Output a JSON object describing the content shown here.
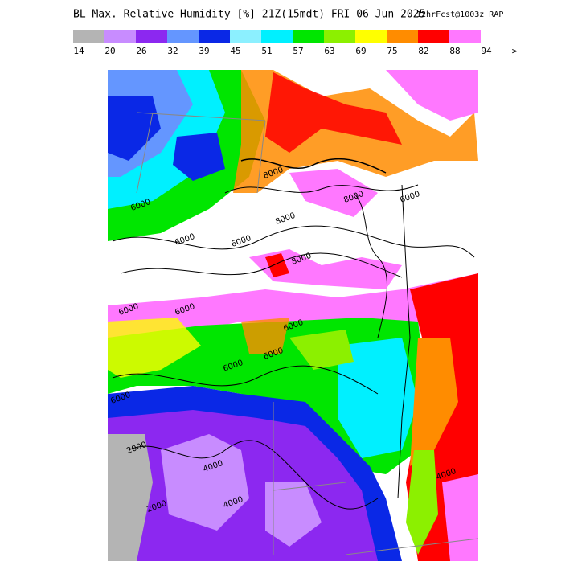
{
  "header": {
    "title": "BL Max. Relative Humidity [%] 21Z(15mdt) FRI 06 Jun 2025",
    "forecast": "12hrFcst@1003z RAP"
  },
  "legend": {
    "colors": [
      "#b4b4b4",
      "#c88cff",
      "#8c28f0",
      "#6496ff",
      "#0a28e6",
      "#8cf0ff",
      "#00f0ff",
      "#00e600",
      "#8cf000",
      "#ffff00",
      "#ff8c00",
      "#ff0000",
      "#ff78ff"
    ],
    "labels": [
      14,
      20,
      26,
      32,
      39,
      45,
      51,
      57,
      63,
      69,
      75,
      82,
      88,
      94,
      ">"
    ]
  },
  "map": {
    "contour_labels": [
      "6000",
      "8000",
      "6000",
      "8000",
      "8000",
      "6000",
      "6000",
      "8000",
      "6000",
      "6000",
      "6000",
      "6000",
      "6000",
      "2000",
      "4000",
      "2000",
      "4000",
      "6000",
      "4000"
    ]
  }
}
